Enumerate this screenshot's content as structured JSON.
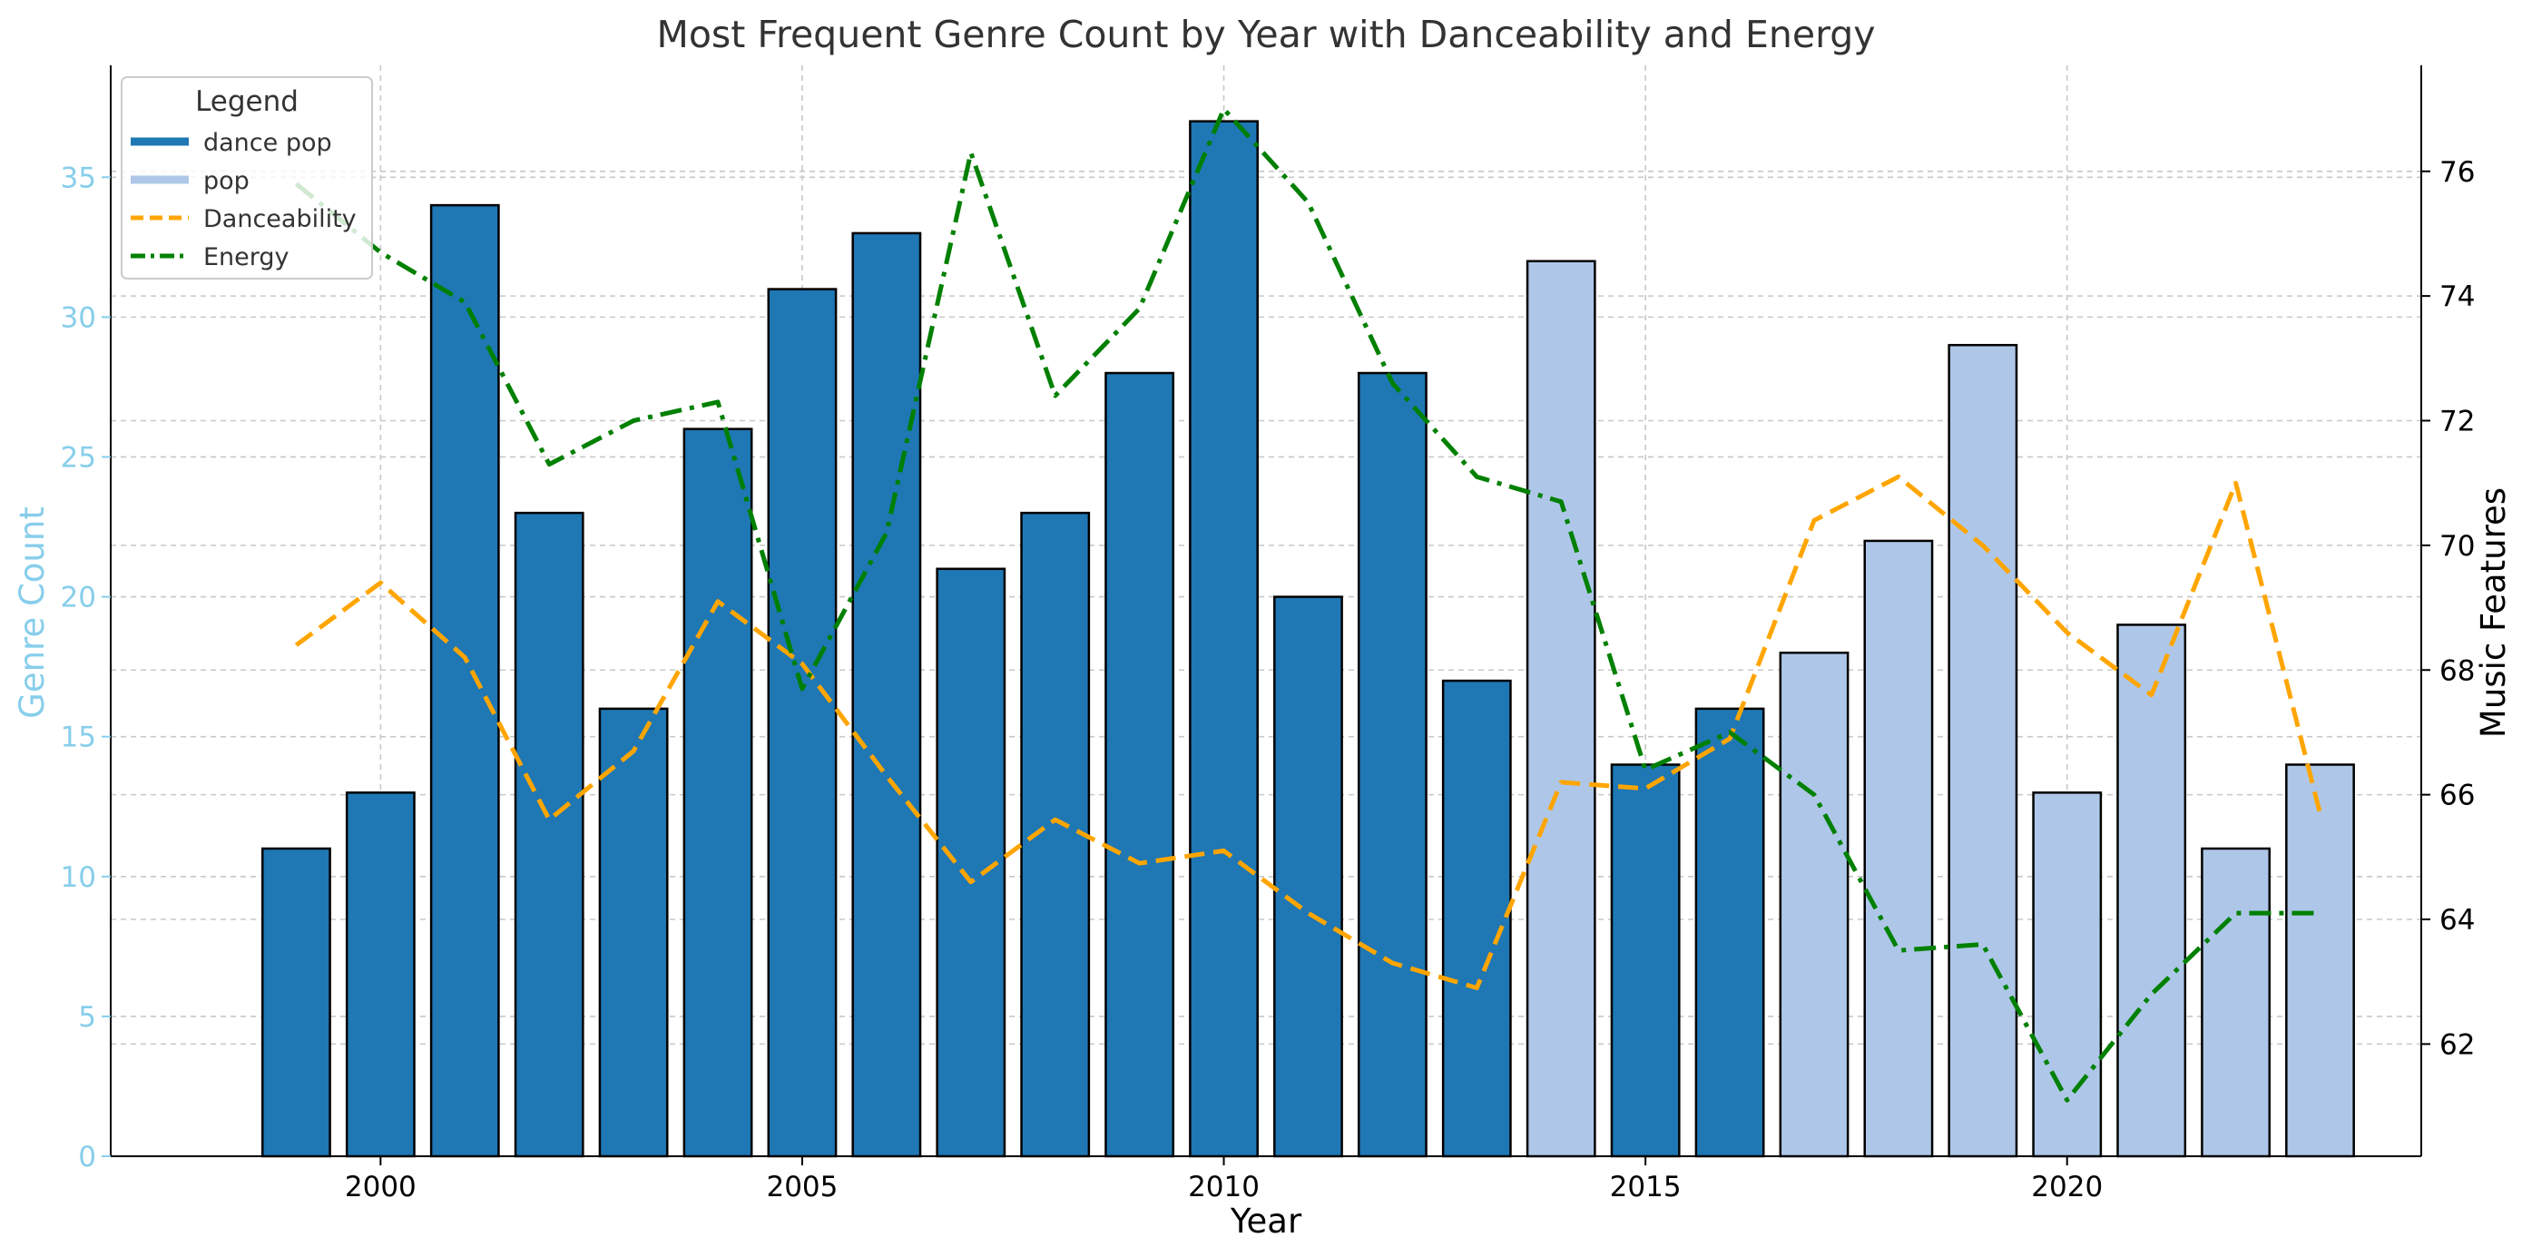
{
  "chart_data": {
    "type": "bar",
    "title": "Most Frequent Genre Count by Year with Danceability and Energy",
    "xlabel": "Year",
    "ylabel_left": "Genre Count",
    "ylabel_right": "Music Features",
    "x_ticks": [
      2000,
      2005,
      2010,
      2015,
      2020
    ],
    "x_range": [
      1996.8,
      2024.2
    ],
    "ylim_left": [
      0,
      39
    ],
    "yticks_left": [
      0,
      5,
      10,
      15,
      20,
      25,
      30,
      35
    ],
    "ylim_right": [
      60.2,
      77.7
    ],
    "yticks_right": [
      62,
      64,
      66,
      68,
      70,
      72,
      74,
      76
    ],
    "grid": true,
    "legend_placement": "top-left",
    "legend_title": "Legend",
    "colors": {
      "dance pop": "#1f77b4",
      "pop": "#aec7e8",
      "Danceability": "#ffa500",
      "Energy": "#008000",
      "left_axis": "#87ceeb",
      "title": "#333333"
    },
    "years": [
      1999,
      2000,
      2001,
      2002,
      2003,
      2004,
      2005,
      2006,
      2007,
      2008,
      2009,
      2010,
      2011,
      2012,
      2013,
      2014,
      2015,
      2016,
      2017,
      2018,
      2019,
      2020,
      2021,
      2022,
      2023
    ],
    "genres": [
      "dance pop",
      "dance pop",
      "dance pop",
      "dance pop",
      "dance pop",
      "dance pop",
      "dance pop",
      "dance pop",
      "dance pop",
      "dance pop",
      "dance pop",
      "dance pop",
      "dance pop",
      "dance pop",
      "dance pop",
      "pop",
      "dance pop",
      "dance pop",
      "pop",
      "pop",
      "pop",
      "pop",
      "pop",
      "pop",
      "pop"
    ],
    "genre_counts": [
      11,
      13,
      34,
      23,
      16,
      26,
      31,
      33,
      21,
      23,
      28,
      37,
      20,
      28,
      17,
      32,
      14,
      16,
      18,
      22,
      29,
      13,
      19,
      11,
      14
    ],
    "series": [
      {
        "name": "Danceability",
        "style": "dashed",
        "axis": "right",
        "values": [
          68.4,
          69.4,
          68.2,
          65.6,
          66.7,
          69.1,
          68.1,
          66.3,
          64.6,
          65.6,
          64.9,
          65.1,
          64.1,
          63.3,
          62.9,
          66.2,
          66.1,
          66.9,
          70.4,
          71.1,
          70.0,
          68.6,
          67.6,
          71.0,
          65.7
        ]
      },
      {
        "name": "Energy",
        "style": "dashdot",
        "axis": "right",
        "values": [
          75.8,
          74.7,
          73.9,
          71.3,
          72.0,
          72.3,
          67.7,
          70.2,
          76.3,
          72.4,
          73.8,
          77.0,
          75.5,
          72.6,
          71.1,
          70.7,
          66.4,
          67.0,
          66.0,
          63.5,
          63.6,
          61.1,
          62.8,
          64.1,
          64.1
        ]
      }
    ]
  }
}
